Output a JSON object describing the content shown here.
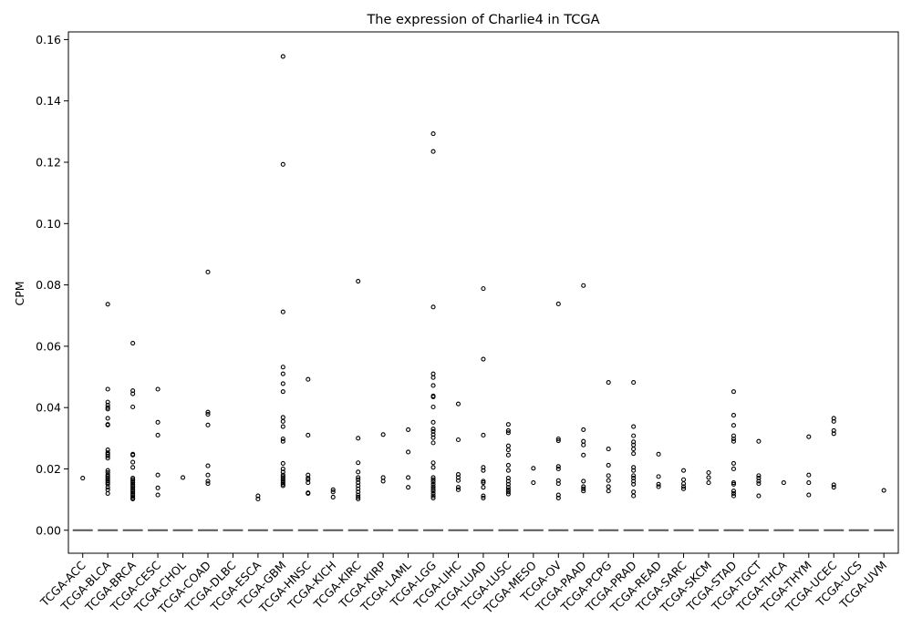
{
  "chart_data": {
    "type": "box",
    "title": "The expression of Charlie4 in TCGA",
    "xlabel": "",
    "ylabel": "CPM",
    "ylim": [
      -0.0075,
      0.1625
    ],
    "yticks": [
      "0.00",
      "0.02",
      "0.04",
      "0.06",
      "0.08",
      "0.10",
      "0.12",
      "0.14",
      "0.16"
    ],
    "categories": [
      "TCGA-ACC",
      "TCGA-BLCA",
      "TCGA-BRCA",
      "TCGA-CESC",
      "TCGA-CHOL",
      "TCGA-COAD",
      "TCGA-DLBC",
      "TCGA-ESCA",
      "TCGA-GBM",
      "TCGA-HNSC",
      "TCGA-KICH",
      "TCGA-KIRC",
      "TCGA-KIRP",
      "TCGA-LAML",
      "TCGA-LGG",
      "TCGA-LIHC",
      "TCGA-LUAD",
      "TCGA-LUSC",
      "TCGA-MESO",
      "TCGA-OV",
      "TCGA-PAAD",
      "TCGA-PCPG",
      "TCGA-PRAD",
      "TCGA-READ",
      "TCGA-SARC",
      "TCGA-SKCM",
      "TCGA-STAD",
      "TCGA-TGCT",
      "TCGA-THCA",
      "TCGA-THYM",
      "TCGA-UCEC",
      "TCGA-UCS",
      "TCGA-UVM"
    ],
    "median": 0,
    "outliers": [
      [
        0.017
      ],
      [
        0.0737,
        0.046,
        0.0418,
        0.0408,
        0.04,
        0.0395,
        0.0365,
        0.0345,
        0.0343,
        0.0262,
        0.0253,
        0.0248,
        0.0242,
        0.0235,
        0.0195,
        0.0188,
        0.018,
        0.0175,
        0.017,
        0.0165,
        0.016,
        0.0155,
        0.015,
        0.014,
        0.0132,
        0.012
      ],
      [
        0.061,
        0.0455,
        0.0445,
        0.0402,
        0.0248,
        0.0245,
        0.0222,
        0.0205,
        0.017,
        0.0165,
        0.016,
        0.0155,
        0.015,
        0.0145,
        0.014,
        0.0135,
        0.013,
        0.0125,
        0.012,
        0.0115,
        0.011,
        0.0105,
        0.0102
      ],
      [
        0.046,
        0.0352,
        0.031,
        0.018,
        0.0138,
        0.0115
      ],
      [
        0.0172
      ],
      [
        0.0842,
        0.0385,
        0.0378,
        0.0343,
        0.021,
        0.018,
        0.016,
        0.0152
      ],
      [],
      [
        0.0112,
        0.0102
      ],
      [
        0.1545,
        0.1193,
        0.0712,
        0.0532,
        0.051,
        0.0478,
        0.0452,
        0.0368,
        0.0355,
        0.0338,
        0.0298,
        0.029,
        0.0218,
        0.02,
        0.019,
        0.018,
        0.0175,
        0.017,
        0.0165,
        0.016,
        0.0155,
        0.015,
        0.0145
      ],
      [
        0.0492,
        0.031,
        0.018,
        0.017,
        0.0165,
        0.0155,
        0.0122,
        0.012
      ],
      [
        0.0132,
        0.0125,
        0.0108
      ],
      [
        0.0812,
        0.03,
        0.022,
        0.019,
        0.0172,
        0.0165,
        0.0155,
        0.0145,
        0.0135,
        0.0125,
        0.0115,
        0.0108,
        0.0102
      ],
      [
        0.0312,
        0.0172,
        0.016
      ],
      [
        0.0328,
        0.0255,
        0.0172,
        0.014
      ],
      [
        0.1293,
        0.1235,
        0.0728,
        0.051,
        0.0498,
        0.0472,
        0.0438,
        0.0435,
        0.0402,
        0.0352,
        0.033,
        0.0322,
        0.0312,
        0.0302,
        0.0285,
        0.022,
        0.0205,
        0.0172,
        0.0165,
        0.0158,
        0.015,
        0.0142,
        0.0135,
        0.0128,
        0.012,
        0.0112,
        0.0105
      ],
      [
        0.0412,
        0.0295,
        0.0182,
        0.0172,
        0.0162,
        0.014,
        0.0132
      ],
      [
        0.0788,
        0.0558,
        0.031,
        0.0205,
        0.0195,
        0.016,
        0.0155,
        0.014,
        0.0112,
        0.0105
      ],
      [
        0.0345,
        0.0325,
        0.0318,
        0.0275,
        0.0262,
        0.0245,
        0.0212,
        0.0195,
        0.017,
        0.016,
        0.015,
        0.014,
        0.0132,
        0.0125,
        0.0118
      ],
      [
        0.0202,
        0.0155
      ],
      [
        0.0738,
        0.0298,
        0.0292,
        0.0208,
        0.02,
        0.0162,
        0.0152,
        0.0115,
        0.0105
      ],
      [
        0.0798,
        0.0328,
        0.029,
        0.0278,
        0.0245,
        0.016,
        0.0142,
        0.0135,
        0.0128
      ],
      [
        0.0482,
        0.0265,
        0.0212,
        0.0178,
        0.0162,
        0.0142,
        0.0128
      ],
      [
        0.0482,
        0.0338,
        0.0308,
        0.0288,
        0.0278,
        0.0265,
        0.025,
        0.0205,
        0.0195,
        0.0178,
        0.017,
        0.016,
        0.015,
        0.0125,
        0.0112
      ],
      [
        0.0248,
        0.0175,
        0.015,
        0.0142
      ],
      [
        0.0195,
        0.0165,
        0.0152,
        0.0142,
        0.0135
      ],
      [
        0.0188,
        0.0172,
        0.0155
      ],
      [
        0.0452,
        0.0375,
        0.0342,
        0.0308,
        0.0298,
        0.029,
        0.0218,
        0.02,
        0.0155,
        0.015,
        0.0128,
        0.012,
        0.0112
      ],
      [
        0.029,
        0.0178,
        0.017,
        0.016,
        0.0152,
        0.0112
      ],
      [
        0.0155
      ],
      [
        0.0305,
        0.018,
        0.0155,
        0.0115
      ],
      [
        0.0365,
        0.0355,
        0.0325,
        0.0315,
        0.0148,
        0.014
      ],
      [],
      [
        0.013
      ]
    ]
  }
}
